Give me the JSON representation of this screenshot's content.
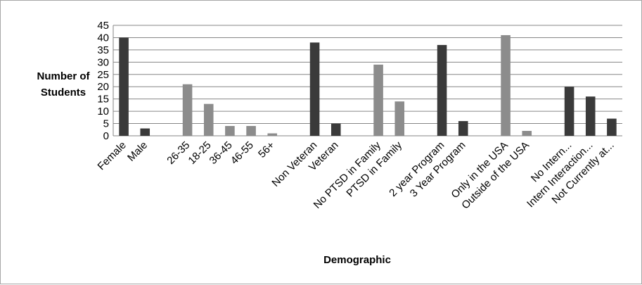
{
  "chart_data": {
    "type": "bar",
    "title": "",
    "xlabel": "Demographic",
    "ylabel_lines": [
      "Number of",
      "Students"
    ],
    "ylim": [
      0,
      45
    ],
    "yticks": [
      0,
      5,
      10,
      15,
      20,
      25,
      30,
      35,
      40,
      45
    ],
    "grid": true,
    "legend": "none",
    "colors": {
      "dark": "#3a3a3a",
      "light": "#8c8c8c",
      "grid": "#868686"
    },
    "groups": [
      {
        "color": "dark",
        "categories": [
          "Female",
          "Male"
        ],
        "values": [
          40,
          3
        ]
      },
      {
        "color": "light",
        "categories": [
          "26-35",
          "18-25",
          "36-45",
          "46-55",
          "56+"
        ],
        "values": [
          21,
          13,
          4,
          4,
          1
        ]
      },
      {
        "color": "dark",
        "categories": [
          "Non Veteran",
          "Veteran"
        ],
        "values": [
          38,
          5
        ]
      },
      {
        "color": "light",
        "categories": [
          "No PTSD in Family",
          "PTSD in Family"
        ],
        "values": [
          29,
          14
        ]
      },
      {
        "color": "dark",
        "categories": [
          "2 year Program",
          "3 Year Program"
        ],
        "values": [
          37,
          6
        ]
      },
      {
        "color": "light",
        "categories": [
          "Only in the USA",
          "Outside of the USA"
        ],
        "values": [
          41,
          2
        ]
      },
      {
        "color": "dark",
        "categories": [
          "No Intern...",
          "Intern Interaction...",
          "Not Currently at..."
        ],
        "values": [
          20,
          16,
          7
        ]
      }
    ]
  }
}
